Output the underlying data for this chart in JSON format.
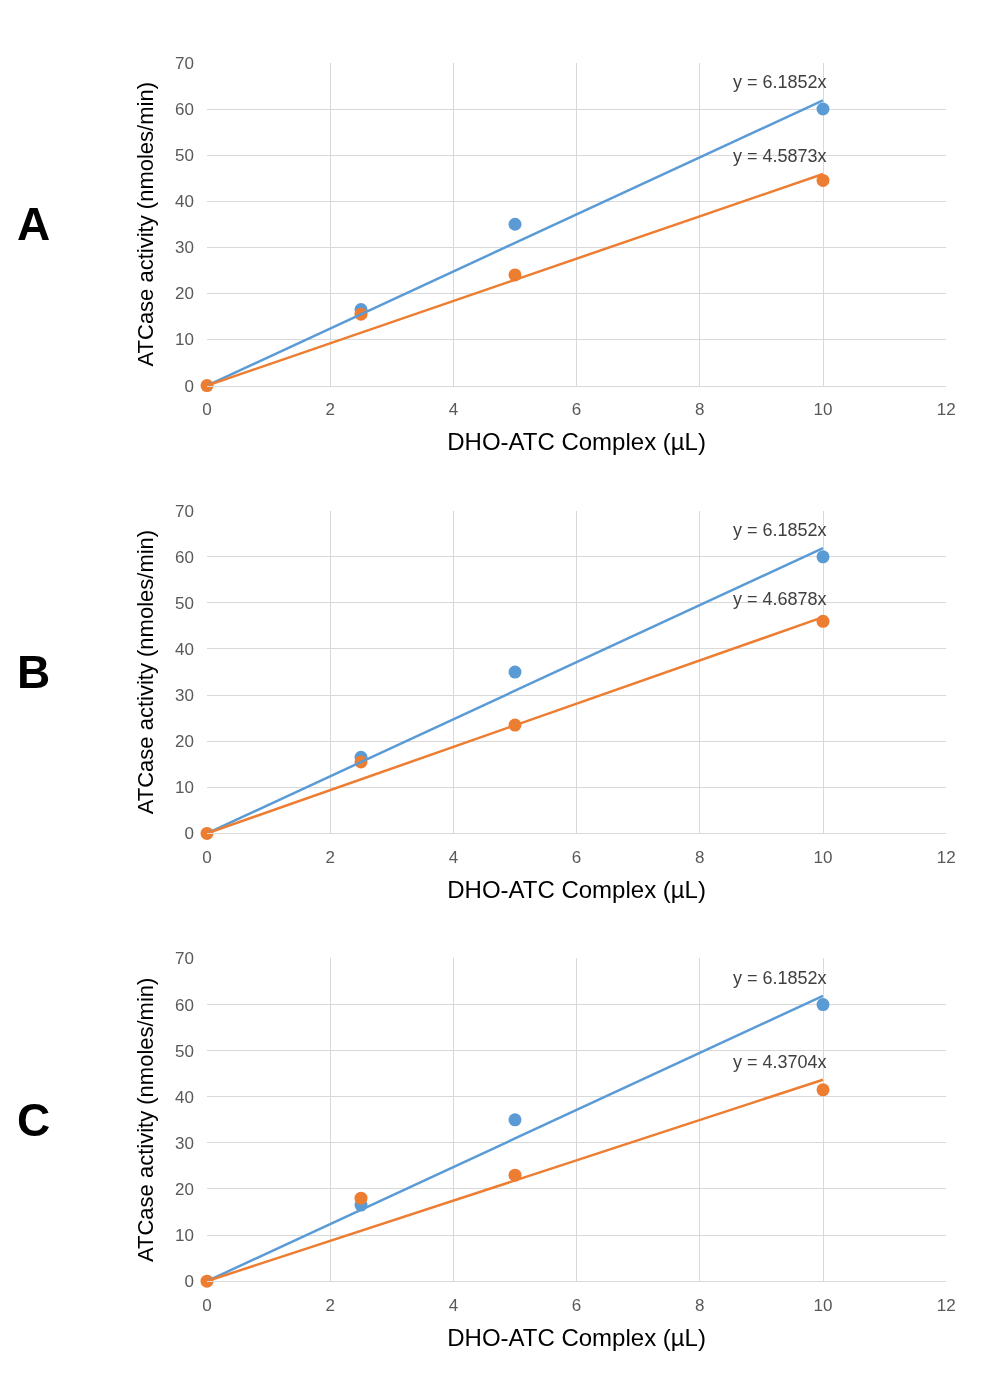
{
  "chart_data": [
    {
      "type": "scatter",
      "title": "A",
      "xlabel": "DHO-ATC Complex (µL)",
      "ylabel": "ATCase activity (nmoles/min)",
      "xlim": [
        0,
        12
      ],
      "xticks": [
        0,
        2,
        4,
        6,
        8,
        10,
        12
      ],
      "ylim": [
        0,
        70
      ],
      "yticks": [
        0,
        10,
        20,
        30,
        40,
        50,
        60,
        70
      ],
      "grid": true,
      "marker": "circle",
      "series": [
        {
          "color": "#5b9bd5",
          "x": [
            2.5,
            5,
            10
          ],
          "values": [
            16.5,
            35,
            60
          ]
        },
        {
          "color": "#ed7d31",
          "x": [
            0,
            2.5,
            5,
            10
          ],
          "values": [
            0,
            15.5,
            24,
            44.5
          ]
        },
        {
          "type": "line",
          "name": "y = 6.1852x",
          "color": "#5b9bd5",
          "x": [
            0,
            10
          ],
          "values": [
            0,
            61.9
          ],
          "marker": "none"
        },
        {
          "type": "line",
          "name": "y = 4.5873x",
          "color": "#ed7d31",
          "x": [
            0,
            10
          ],
          "values": [
            0,
            45.9
          ],
          "marker": "none"
        }
      ]
    },
    {
      "type": "scatter",
      "title": "B",
      "xlabel": "DHO-ATC Complex (µL)",
      "ylabel": "ATCase activity (nmoles/min)",
      "xlim": [
        0,
        12
      ],
      "xticks": [
        0,
        2,
        4,
        6,
        8,
        10,
        12
      ],
      "ylim": [
        0,
        70
      ],
      "yticks": [
        0,
        10,
        20,
        30,
        40,
        50,
        60,
        70
      ],
      "grid": true,
      "marker": "circle",
      "series": [
        {
          "color": "#5b9bd5",
          "x": [
            2.5,
            5,
            10
          ],
          "values": [
            16.5,
            35,
            60
          ]
        },
        {
          "color": "#ed7d31",
          "x": [
            0,
            2.5,
            5,
            10
          ],
          "values": [
            0,
            15.5,
            23.5,
            46
          ]
        },
        {
          "type": "line",
          "name": "y = 6.1852x",
          "color": "#5b9bd5",
          "x": [
            0,
            10
          ],
          "values": [
            0,
            61.9
          ],
          "marker": "none"
        },
        {
          "type": "line",
          "name": "y = 4.6878x",
          "color": "#ed7d31",
          "x": [
            0,
            10
          ],
          "values": [
            0,
            46.9
          ],
          "marker": "none"
        }
      ]
    },
    {
      "type": "scatter",
      "title": "C",
      "xlabel": "DHO-ATC Complex (µL)",
      "ylabel": "ATCase activity (nmoles/min)",
      "xlim": [
        0,
        12
      ],
      "xticks": [
        0,
        2,
        4,
        6,
        8,
        10,
        12
      ],
      "ylim": [
        0,
        70
      ],
      "yticks": [
        0,
        10,
        20,
        30,
        40,
        50,
        60,
        70
      ],
      "grid": true,
      "marker": "circle",
      "series": [
        {
          "color": "#5b9bd5",
          "x": [
            2.5,
            5,
            10
          ],
          "values": [
            16.5,
            35,
            60
          ]
        },
        {
          "color": "#ed7d31",
          "x": [
            0,
            2.5,
            5,
            10
          ],
          "values": [
            0,
            18,
            23,
            41.5
          ]
        },
        {
          "type": "line",
          "name": "y = 6.1852x",
          "color": "#5b9bd5",
          "x": [
            0,
            10
          ],
          "values": [
            0,
            61.9
          ],
          "marker": "none"
        },
        {
          "type": "line",
          "name": "y = 4.3704x",
          "color": "#ed7d31",
          "x": [
            0,
            10
          ],
          "values": [
            0,
            43.7
          ],
          "marker": "none"
        }
      ]
    }
  ]
}
